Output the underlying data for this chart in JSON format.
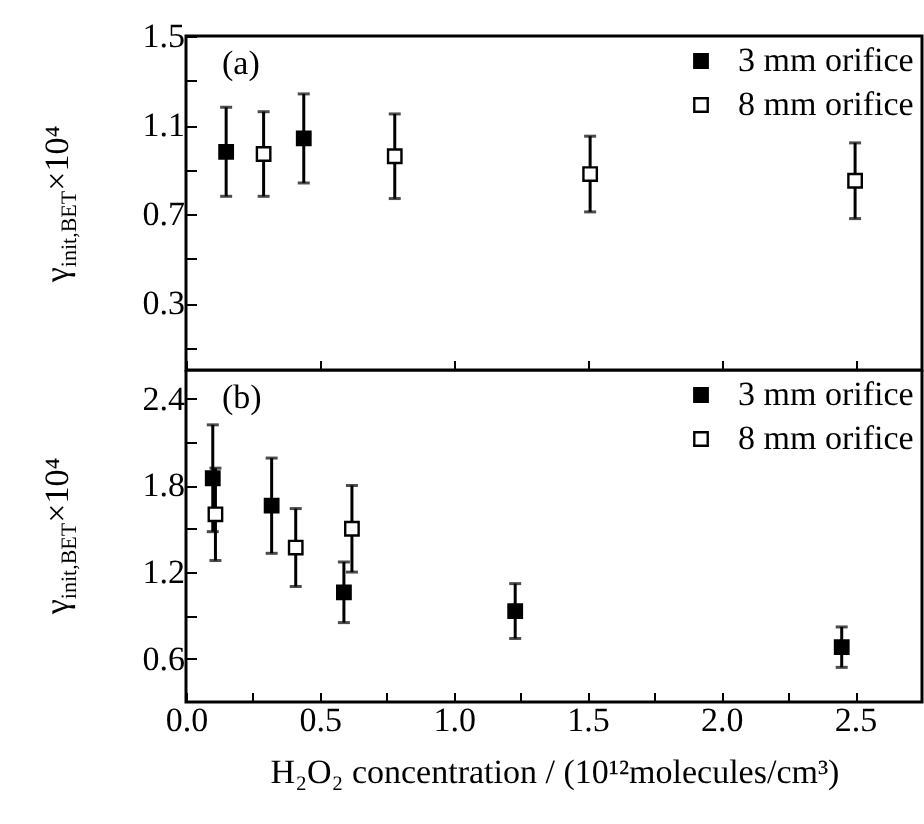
{
  "chart_data": [
    {
      "type": "scatter",
      "ylabel": "γ$_{init,BET}$×10⁴",
      "annotations": [
        "(a)"
      ],
      "legend": "top right",
      "marker": "square",
      "tick_labels": "y",
      "xlim": [
        0,
        2.75
      ],
      "xticks": [
        0,
        0.5,
        1,
        1.5,
        2,
        2.5
      ],
      "ylim": [
        0,
        1.5
      ],
      "yticks": [
        {
          "value": 0.1,
          "label": null
        },
        0.3,
        {
          "value": 0.5,
          "label": null
        },
        0.7,
        {
          "value": 0.9,
          "label": null
        },
        1.1,
        {
          "value": 1.3,
          "label": null
        },
        1.5
      ],
      "series": [
        {
          "name": "3 mm orifice",
          "color": "#000000",
          "x": [
            0.15,
            0.44
          ],
          "values": [
            0.98,
            1.04
          ],
          "errors": [
            0.2,
            0.2
          ]
        },
        {
          "name": "8 mm orifice",
          "color": "#ffffff",
          "x": [
            0.29,
            0.78,
            1.51,
            2.5
          ],
          "values": [
            0.97,
            0.96,
            0.88,
            0.85
          ],
          "errors": [
            0.19,
            0.19,
            0.17,
            0.17
          ]
        }
      ]
    },
    {
      "type": "scatter",
      "ylabel": "γ$_{init,BET}$×10⁴",
      "xlabel": "H₂O₂ concentration / (10¹²molecules/cm³)",
      "annotations": [
        "(b)"
      ],
      "legend": "top right",
      "marker": "square",
      "xlim": [
        0,
        2.75
      ],
      "xticks": [
        {
          "value": 0,
          "label": "0.0"
        },
        {
          "value": 0.25,
          "label": null
        },
        0.5,
        {
          "value": 0.75,
          "label": null
        },
        {
          "value": 1,
          "label": "1.0"
        },
        {
          "value": 1.25,
          "label": null
        },
        1.5,
        {
          "value": 1.75,
          "label": null
        },
        {
          "value": 2,
          "label": "2.0"
        },
        {
          "value": 2.25,
          "label": null
        },
        2.5
      ],
      "ylim": [
        0.3,
        2.6
      ],
      "yticks": [
        0.6,
        {
          "value": 0.9,
          "label": null
        },
        1.2,
        {
          "value": 1.5,
          "label": null
        },
        1.8,
        {
          "value": 2.1,
          "label": null
        },
        2.4
      ],
      "series": [
        {
          "name": "3 mm orifice",
          "color": "#000000",
          "x": [
            0.1,
            0.32,
            0.59,
            1.23,
            2.45
          ],
          "values": [
            1.85,
            1.66,
            1.06,
            0.93,
            0.68
          ],
          "errors": [
            0.37,
            0.33,
            0.21,
            0.19,
            0.14
          ]
        },
        {
          "name": "8 mm orifice",
          "color": "#ffffff",
          "x": [
            0.11,
            0.41,
            0.62
          ],
          "values": [
            1.6,
            1.37,
            1.5
          ],
          "errors": [
            0.32,
            0.27,
            0.3
          ]
        }
      ]
    }
  ]
}
